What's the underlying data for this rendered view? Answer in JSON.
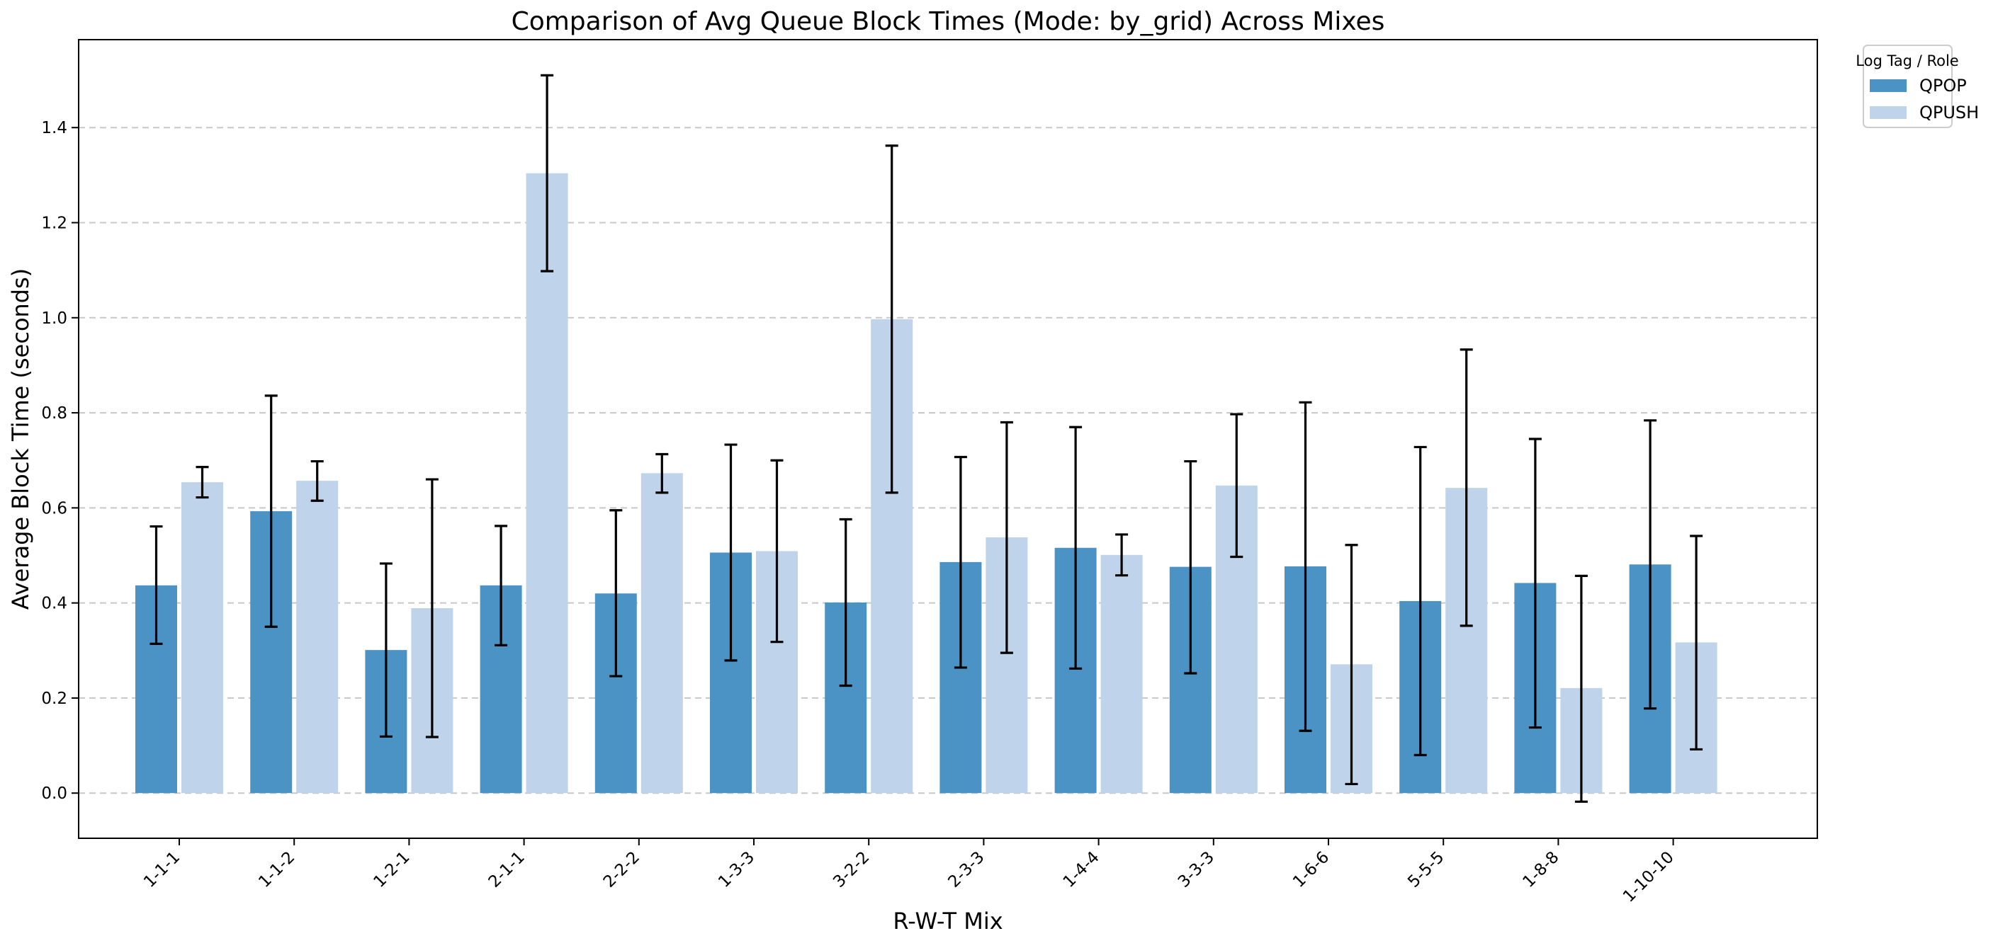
{
  "chart_data": {
    "type": "bar",
    "title": "Comparison of Avg Queue Block Times (Mode: by_grid) Across Mixes",
    "xlabel": "R-W-T Mix",
    "ylabel": "Average Block Time (seconds)",
    "categories": [
      "1-1-1",
      "1-1-2",
      "1-2-1",
      "2-1-1",
      "2-2-2",
      "1-3-3",
      "3-2-2",
      "2-3-3",
      "1-4-4",
      "3-3-3",
      "1-6-6",
      "5-5-5",
      "1-8-8",
      "1-10-10"
    ],
    "ylim": [
      -0.095,
      1.585
    ],
    "yticks": [
      0.0,
      0.2,
      0.4,
      0.6,
      0.8,
      1.0,
      1.2,
      1.4
    ],
    "ytick_labels": [
      "0.0",
      "0.2",
      "0.4",
      "0.6",
      "0.8",
      "1.0",
      "1.2",
      "1.4"
    ],
    "grid": "horizontal, dashed",
    "legend": {
      "title": "Log Tag / Role",
      "placement": "outside top-right"
    },
    "series": [
      {
        "name": "QPOP",
        "color": "#4c93c5",
        "values": [
          0.437,
          0.593,
          0.301,
          0.437,
          0.42,
          0.506,
          0.401,
          0.486,
          0.516,
          0.476,
          0.477,
          0.404,
          0.442,
          0.481
        ],
        "error_low": [
          0.314,
          0.35,
          0.119,
          0.311,
          0.246,
          0.279,
          0.226,
          0.264,
          0.262,
          0.252,
          0.131,
          0.08,
          0.138,
          0.178
        ],
        "error_high": [
          0.561,
          0.836,
          0.483,
          0.562,
          0.595,
          0.733,
          0.576,
          0.707,
          0.77,
          0.698,
          0.822,
          0.728,
          0.745,
          0.784
        ]
      },
      {
        "name": "QPUSH",
        "color": "#bfd3eb",
        "values": [
          0.654,
          0.657,
          0.389,
          1.304,
          0.673,
          0.509,
          0.997,
          0.538,
          0.501,
          0.647,
          0.271,
          0.642,
          0.221,
          0.317
        ],
        "error_low": [
          0.622,
          0.615,
          0.118,
          1.098,
          0.632,
          0.318,
          0.632,
          0.295,
          0.458,
          0.497,
          0.019,
          0.352,
          -0.018,
          0.092
        ],
        "error_high": [
          0.686,
          0.698,
          0.66,
          1.51,
          0.713,
          0.7,
          1.362,
          0.78,
          0.544,
          0.797,
          0.522,
          0.933,
          0.457,
          0.541
        ]
      }
    ]
  }
}
